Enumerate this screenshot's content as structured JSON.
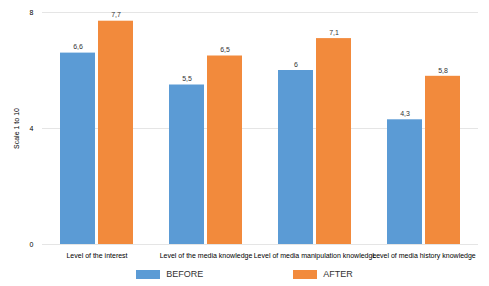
{
  "chart_data": {
    "type": "bar",
    "categories": [
      "Level of the interest",
      "Level of the media knowledge",
      "Level of media manipulation knowledge",
      "Level of media history knowledge"
    ],
    "series": [
      {
        "name": "BEFORE",
        "color": "#5b9bd5",
        "values": [
          6.6,
          5.5,
          6,
          4.3
        ],
        "value_labels": [
          "6,6",
          "5,5",
          "6",
          "4,3"
        ]
      },
      {
        "name": "AFTER",
        "color": "#f28a3c",
        "values": [
          7.7,
          6.5,
          7.1,
          5.8
        ],
        "value_labels": [
          "7,7",
          "6,5",
          "7,1",
          "5,8"
        ]
      }
    ],
    "y_label": "Scale 1 to 10",
    "ylim": [
      0,
      8
    ],
    "yticks": [
      0,
      4,
      8
    ],
    "grid": true,
    "data_labels": true,
    "legend": "bottom"
  }
}
